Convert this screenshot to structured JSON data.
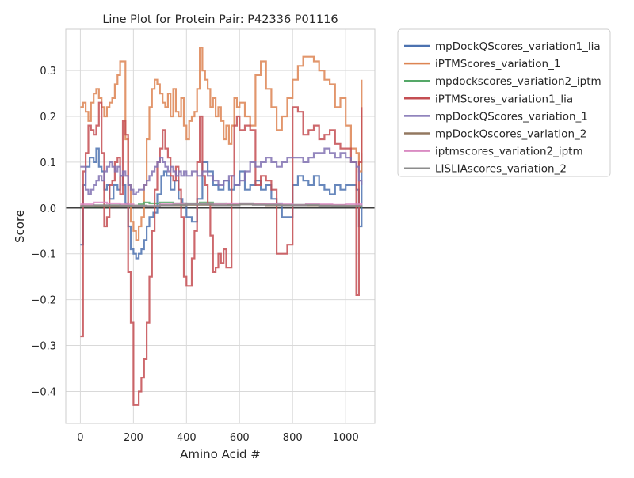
{
  "chart_data": {
    "type": "line",
    "title": "Line Plot for Protein Pair: P42336 P01116",
    "xlabel": "Amino Acid #",
    "ylabel": "Score",
    "xlim": [
      -55,
      1110
    ],
    "ylim": [
      -0.47,
      0.39
    ],
    "xticks": [
      0,
      200,
      400,
      600,
      800,
      1000
    ],
    "yticks": [
      -0.4,
      -0.3,
      -0.2,
      -0.1,
      0.0,
      0.1,
      0.2,
      0.3
    ],
    "ytick_labels": [
      "−0.4",
      "−0.3",
      "−0.2",
      "−0.1",
      "0.0",
      "0.1",
      "0.2",
      "0.3"
    ],
    "grid": true,
    "legend_position": "outside-right",
    "zero_line": true,
    "series": [
      {
        "name": "mpDockQScores_variation1_lia",
        "color": "#4c72b0",
        "x": [
          0,
          10,
          20,
          35,
          50,
          60,
          70,
          80,
          90,
          100,
          110,
          125,
          140,
          150,
          160,
          170,
          180,
          190,
          200,
          210,
          220,
          230,
          240,
          250,
          260,
          275,
          290,
          305,
          315,
          325,
          340,
          355,
          370,
          385,
          400,
          420,
          440,
          460,
          480,
          500,
          520,
          540,
          560,
          580,
          600,
          620,
          640,
          660,
          680,
          700,
          720,
          740,
          760,
          780,
          800,
          820,
          840,
          860,
          880,
          900,
          920,
          940,
          960,
          980,
          1000,
          1020,
          1040,
          1050,
          1060
        ],
        "y": [
          -0.08,
          0.05,
          0.09,
          0.11,
          0.1,
          0.13,
          0.09,
          0.08,
          0.04,
          0.05,
          0.02,
          0.05,
          0.04,
          0.07,
          0.05,
          0.01,
          -0.04,
          -0.09,
          -0.1,
          -0.11,
          -0.1,
          -0.09,
          -0.07,
          -0.04,
          -0.02,
          -0.01,
          0.03,
          0.07,
          0.08,
          0.07,
          0.04,
          0.06,
          0.02,
          0.01,
          -0.02,
          -0.03,
          0.02,
          0.1,
          0.08,
          0.05,
          0.04,
          0.06,
          0.04,
          0.05,
          0.08,
          0.04,
          0.05,
          0.06,
          0.04,
          0.05,
          0.02,
          0.01,
          -0.02,
          -0.02,
          0.05,
          0.07,
          0.06,
          0.05,
          0.07,
          0.05,
          0.04,
          0.03,
          0.05,
          0.04,
          0.05,
          0.05,
          0.04,
          -0.04,
          0.12
        ]
      },
      {
        "name": "iPTMScores_variation_1",
        "color": "#dd8452",
        "x": [
          0,
          10,
          20,
          30,
          40,
          50,
          60,
          70,
          80,
          90,
          100,
          110,
          120,
          130,
          140,
          150,
          160,
          170,
          180,
          190,
          200,
          210,
          220,
          230,
          240,
          250,
          260,
          270,
          280,
          290,
          300,
          310,
          320,
          330,
          340,
          350,
          360,
          370,
          380,
          390,
          400,
          410,
          420,
          430,
          440,
          450,
          460,
          470,
          480,
          490,
          500,
          510,
          520,
          530,
          540,
          550,
          560,
          570,
          580,
          590,
          600,
          620,
          640,
          660,
          680,
          700,
          720,
          740,
          760,
          780,
          800,
          820,
          840,
          860,
          880,
          900,
          920,
          940,
          960,
          980,
          1000,
          1020,
          1040,
          1050,
          1060
        ],
        "y": [
          0.22,
          0.23,
          0.21,
          0.19,
          0.23,
          0.25,
          0.26,
          0.24,
          0.22,
          0.2,
          0.22,
          0.23,
          0.24,
          0.27,
          0.29,
          0.32,
          0.32,
          0.15,
          0.05,
          -0.03,
          -0.05,
          -0.07,
          -0.04,
          -0.02,
          0.05,
          0.15,
          0.22,
          0.26,
          0.28,
          0.27,
          0.25,
          0.23,
          0.22,
          0.25,
          0.2,
          0.26,
          0.21,
          0.2,
          0.24,
          0.18,
          0.15,
          0.19,
          0.2,
          0.21,
          0.26,
          0.35,
          0.3,
          0.28,
          0.26,
          0.22,
          0.24,
          0.2,
          0.22,
          0.19,
          0.15,
          0.18,
          0.14,
          0.18,
          0.24,
          0.22,
          0.23,
          0.2,
          0.18,
          0.29,
          0.32,
          0.26,
          0.22,
          0.17,
          0.2,
          0.24,
          0.28,
          0.31,
          0.33,
          0.33,
          0.32,
          0.3,
          0.28,
          0.27,
          0.22,
          0.24,
          0.18,
          0.13,
          0.12,
          0.08,
          0.28
        ]
      },
      {
        "name": "mpdockscores_variation2_iptm",
        "color": "#55a868",
        "x": [
          0,
          100,
          200,
          220,
          240,
          260,
          300,
          350,
          400,
          450,
          500,
          550,
          600,
          650,
          700,
          750,
          800,
          850,
          900,
          950,
          1000,
          1050,
          1060
        ],
        "y": [
          0.003,
          0.005,
          0.005,
          0.008,
          0.012,
          0.01,
          0.012,
          0.01,
          0.01,
          0.012,
          0.01,
          0.008,
          0.01,
          0.008,
          0.009,
          0.007,
          0.007,
          0.006,
          0.006,
          0.005,
          0.005,
          0.003,
          0.005
        ]
      },
      {
        "name": "iPTMScores_variation1_lia",
        "color": "#c44e52",
        "x": [
          0,
          10,
          20,
          30,
          40,
          50,
          60,
          70,
          80,
          90,
          100,
          110,
          120,
          130,
          140,
          150,
          160,
          170,
          180,
          190,
          200,
          210,
          220,
          230,
          240,
          250,
          260,
          270,
          280,
          290,
          300,
          310,
          320,
          330,
          340,
          350,
          360,
          370,
          380,
          390,
          400,
          410,
          420,
          430,
          440,
          450,
          460,
          470,
          480,
          490,
          500,
          510,
          520,
          530,
          540,
          550,
          560,
          570,
          580,
          590,
          600,
          620,
          640,
          660,
          680,
          700,
          720,
          740,
          760,
          780,
          800,
          820,
          840,
          860,
          880,
          900,
          920,
          940,
          960,
          980,
          1000,
          1020,
          1040,
          1050,
          1060
        ],
        "y": [
          -0.28,
          0.08,
          0.12,
          0.18,
          0.17,
          0.16,
          0.18,
          0.23,
          0.12,
          -0.04,
          -0.02,
          0.05,
          0.06,
          0.1,
          0.11,
          0.03,
          0.19,
          0.16,
          -0.14,
          -0.25,
          -0.43,
          -0.43,
          -0.4,
          -0.37,
          -0.33,
          -0.25,
          -0.15,
          -0.05,
          0.04,
          0.1,
          0.13,
          0.17,
          0.13,
          0.11,
          0.07,
          0.06,
          0.09,
          0.04,
          -0.02,
          -0.15,
          -0.17,
          -0.17,
          -0.11,
          -0.05,
          0.1,
          0.2,
          0.07,
          0.05,
          0.01,
          -0.06,
          -0.14,
          -0.13,
          -0.1,
          -0.12,
          -0.09,
          -0.13,
          -0.13,
          0.07,
          0.18,
          0.2,
          0.17,
          0.18,
          0.17,
          0.05,
          0.07,
          0.06,
          0.04,
          -0.1,
          -0.1,
          -0.08,
          0.22,
          0.21,
          0.16,
          0.17,
          0.18,
          0.15,
          0.16,
          0.17,
          0.14,
          0.13,
          0.13,
          0.1,
          -0.19,
          0.1,
          0.22
        ]
      },
      {
        "name": "mpDockQScores_variation_1",
        "color": "#8172b3",
        "x": [
          0,
          10,
          20,
          30,
          40,
          50,
          60,
          70,
          80,
          90,
          100,
          110,
          120,
          130,
          140,
          150,
          160,
          170,
          180,
          190,
          200,
          210,
          220,
          230,
          240,
          250,
          260,
          270,
          280,
          290,
          300,
          310,
          320,
          330,
          340,
          350,
          360,
          370,
          380,
          390,
          400,
          420,
          440,
          460,
          480,
          500,
          520,
          540,
          560,
          580,
          600,
          620,
          640,
          660,
          680,
          700,
          720,
          740,
          760,
          780,
          800,
          820,
          840,
          860,
          880,
          900,
          920,
          940,
          960,
          980,
          1000,
          1020,
          1040,
          1050,
          1060
        ],
        "y": [
          0.09,
          0.09,
          0.04,
          0.03,
          0.04,
          0.05,
          0.06,
          0.07,
          0.06,
          0.08,
          0.09,
          0.1,
          0.09,
          0.08,
          0.09,
          0.07,
          0.08,
          0.07,
          0.05,
          0.04,
          0.03,
          0.035,
          0.04,
          0.04,
          0.05,
          0.06,
          0.07,
          0.08,
          0.09,
          0.1,
          0.11,
          0.1,
          0.09,
          0.08,
          0.09,
          0.08,
          0.07,
          0.08,
          0.07,
          0.08,
          0.07,
          0.08,
          0.07,
          0.08,
          0.07,
          0.06,
          0.05,
          0.06,
          0.07,
          0.05,
          0.06,
          0.08,
          0.1,
          0.09,
          0.1,
          0.11,
          0.1,
          0.09,
          0.1,
          0.11,
          0.11,
          0.11,
          0.1,
          0.11,
          0.12,
          0.12,
          0.13,
          0.12,
          0.11,
          0.12,
          0.11,
          0.1,
          0.09,
          0.06,
          0.05
        ]
      },
      {
        "name": "mpDockQscores_variation_2",
        "color": "#937860",
        "x": [
          0,
          100,
          200,
          300,
          400,
          500,
          600,
          700,
          800,
          900,
          1000,
          1060
        ],
        "y": [
          0.005,
          0.005,
          0.004,
          0.006,
          0.007,
          0.007,
          0.008,
          0.006,
          0.006,
          0.006,
          0.004,
          0.004
        ]
      },
      {
        "name": "iptmscores_variation2_iptm",
        "color": "#da8bc3",
        "x": [
          0,
          50,
          100,
          150,
          200,
          250,
          300,
          350,
          400,
          450,
          500,
          550,
          600,
          650,
          700,
          750,
          800,
          850,
          900,
          950,
          1000,
          1060
        ],
        "y": [
          0.008,
          0.012,
          0.01,
          0.008,
          0.005,
          0.004,
          0.008,
          0.01,
          0.009,
          0.01,
          0.008,
          0.01,
          0.01,
          0.008,
          0.009,
          0.008,
          0.007,
          0.009,
          0.008,
          0.007,
          0.008,
          0.006
        ]
      },
      {
        "name": "LISLIAscores_variation_2",
        "color": "#8c8c8c",
        "x": [
          0,
          50,
          100,
          150,
          200,
          250,
          300,
          350,
          400,
          450,
          500,
          550,
          600,
          650,
          700,
          750,
          800,
          850,
          900,
          950,
          1000,
          1060
        ],
        "y": [
          0.004,
          0.006,
          0.006,
          0.005,
          0.005,
          0.004,
          0.006,
          0.007,
          0.008,
          0.008,
          0.006,
          0.006,
          0.008,
          0.007,
          0.007,
          0.006,
          0.006,
          0.007,
          0.005,
          0.005,
          0.004,
          0.003
        ]
      }
    ]
  }
}
